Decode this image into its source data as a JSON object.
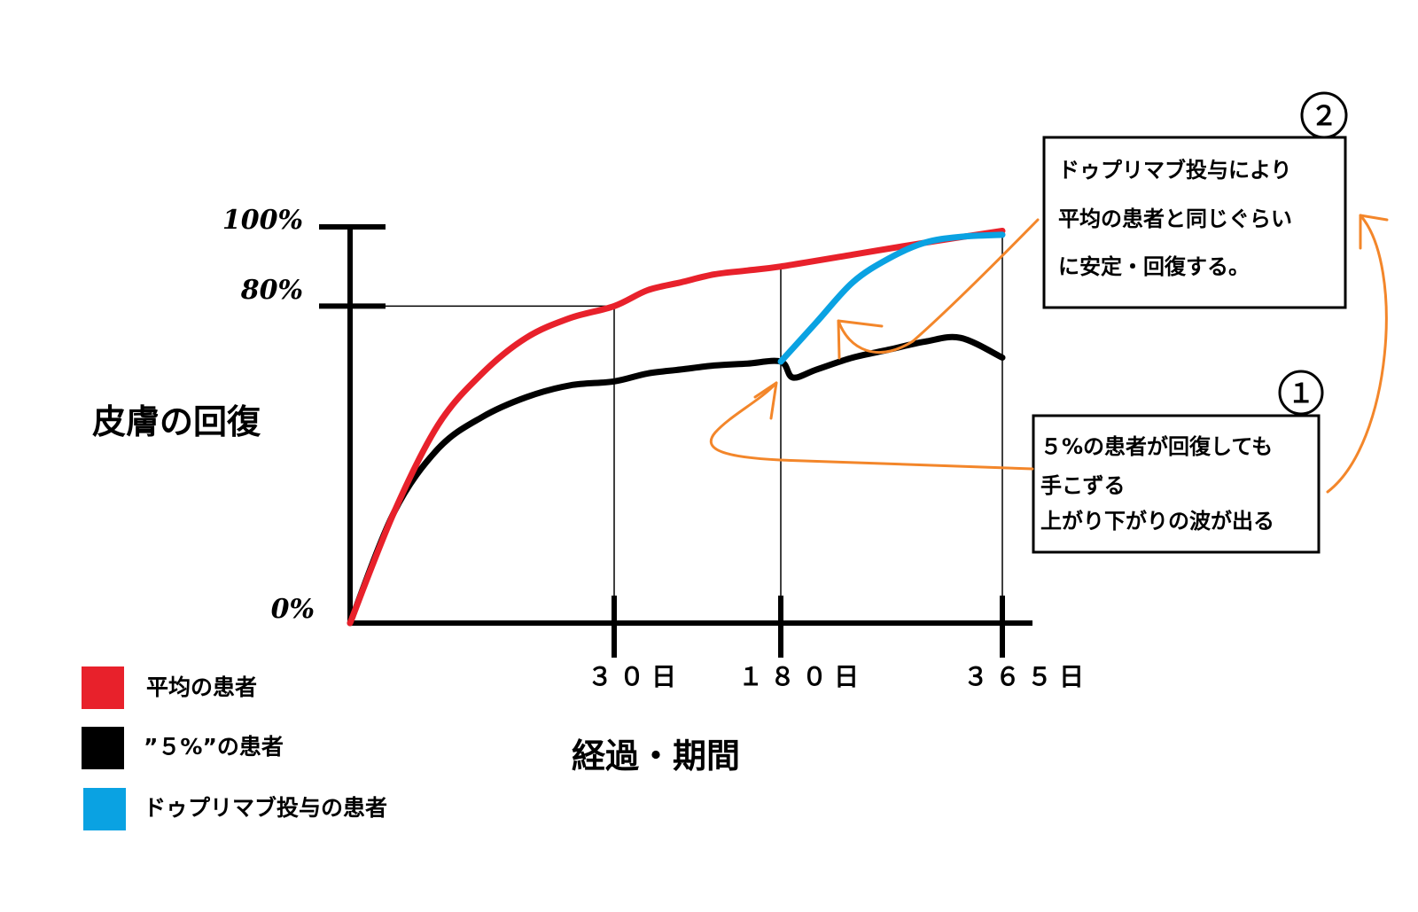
{
  "chart_data": {
    "type": "line",
    "ylabel": "皮膚の回復",
    "xlabel": "経過・期間",
    "y_ticks": [
      "100%",
      "80%",
      "0%"
    ],
    "y_tick_values": [
      100,
      80,
      0
    ],
    "x_ticks": [
      "３０日",
      "１８０日",
      "３６５日"
    ],
    "x_tick_values": [
      30,
      180,
      365
    ],
    "ylim": [
      0,
      100
    ],
    "grid": false,
    "legend_position": "bottom-left",
    "series": [
      {
        "name": "平均の患者",
        "color": "#e8212b",
        "x": [
          0,
          5,
          10,
          15,
          20,
          25,
          30,
          60,
          90,
          120,
          150,
          180,
          240,
          300,
          365
        ],
        "y": [
          0,
          28,
          50,
          63,
          72,
          77,
          80,
          84,
          86,
          88,
          89,
          90,
          93,
          96,
          99
        ]
      },
      {
        "name": "”５%”の患者",
        "color": "#000000",
        "x": [
          0,
          5,
          10,
          15,
          20,
          25,
          30,
          60,
          90,
          120,
          150,
          180,
          190,
          210,
          240,
          270,
          300,
          330,
          365
        ],
        "y": [
          0,
          28,
          44,
          52,
          57,
          60,
          61,
          63,
          64,
          65,
          65.5,
          66,
          62,
          64,
          67,
          69,
          71,
          72,
          67
        ]
      },
      {
        "name": "ドゥプリマブ投与の患者",
        "color": "#0aa2e2",
        "x": [
          180,
          210,
          240,
          270,
          300,
          330,
          365
        ],
        "y": [
          66,
          76,
          86,
          92,
          96,
          97.5,
          98
        ]
      }
    ],
    "annotations": [
      {
        "number": "１",
        "lines": [
          "５%の患者が回復しても",
          "手こずる",
          "上がり下がりの波が出る"
        ]
      },
      {
        "number": "２",
        "lines": [
          "ドゥプリマブ投与により",
          "平均の患者と同じぐらい",
          "に安定・回復する。"
        ]
      }
    ]
  },
  "colors": {
    "accent_arrow": "#f3862a"
  }
}
